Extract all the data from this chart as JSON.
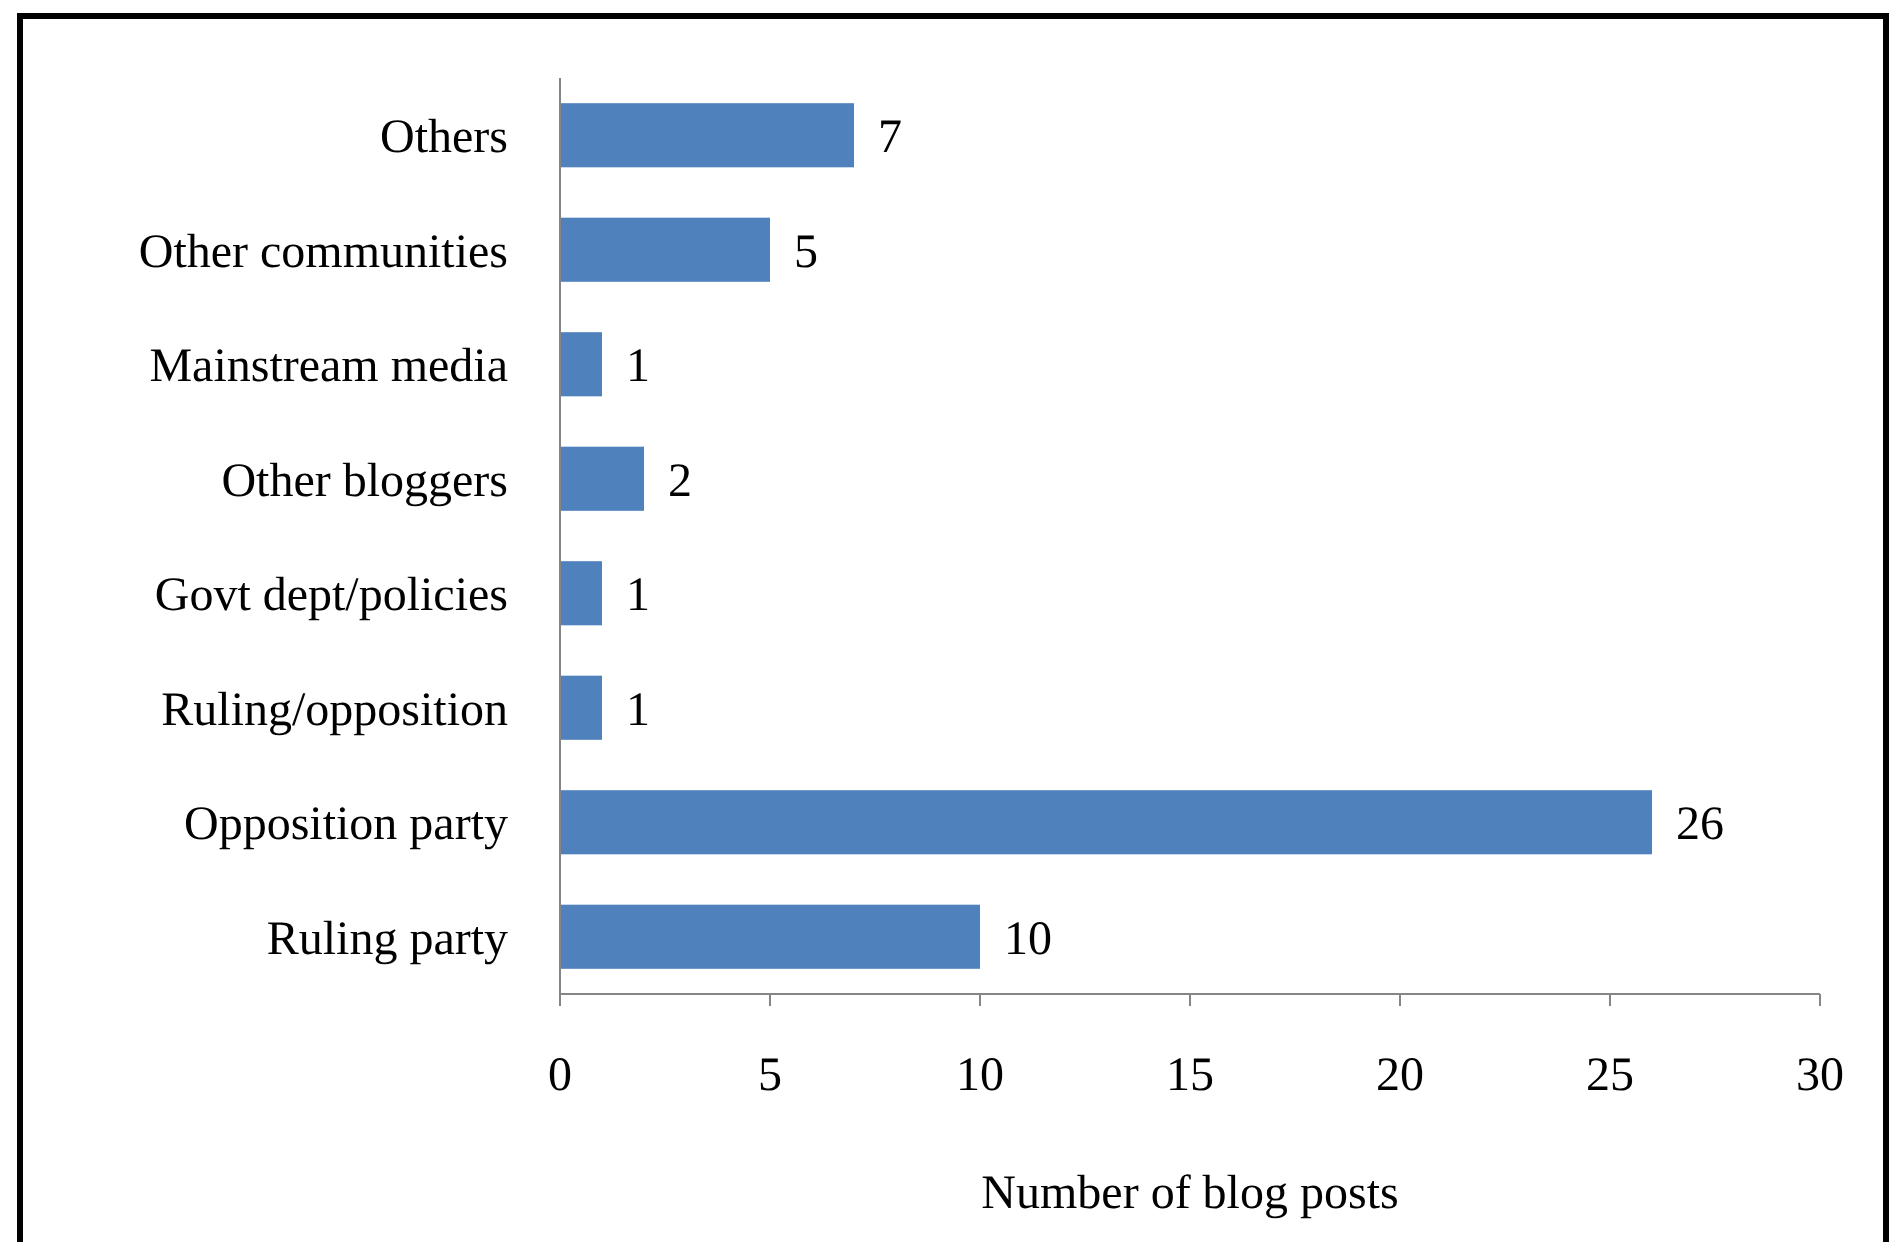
{
  "chart_data": {
    "type": "bar",
    "orientation": "horizontal",
    "xlabel": "Number of blog posts",
    "categories": [
      "Others",
      "Other communities",
      "Mainstream media",
      "Other bloggers",
      "Govt dept/policies",
      "Ruling/opposition",
      "Opposition party",
      "Ruling party"
    ],
    "values": [
      7,
      5,
      1,
      2,
      1,
      1,
      26,
      10
    ],
    "color": "#4f81bd",
    "xlim": [
      0,
      30
    ],
    "xticks": [
      0,
      5,
      10,
      15,
      20,
      25,
      30
    ],
    "grid": false,
    "data_labels": true
  }
}
